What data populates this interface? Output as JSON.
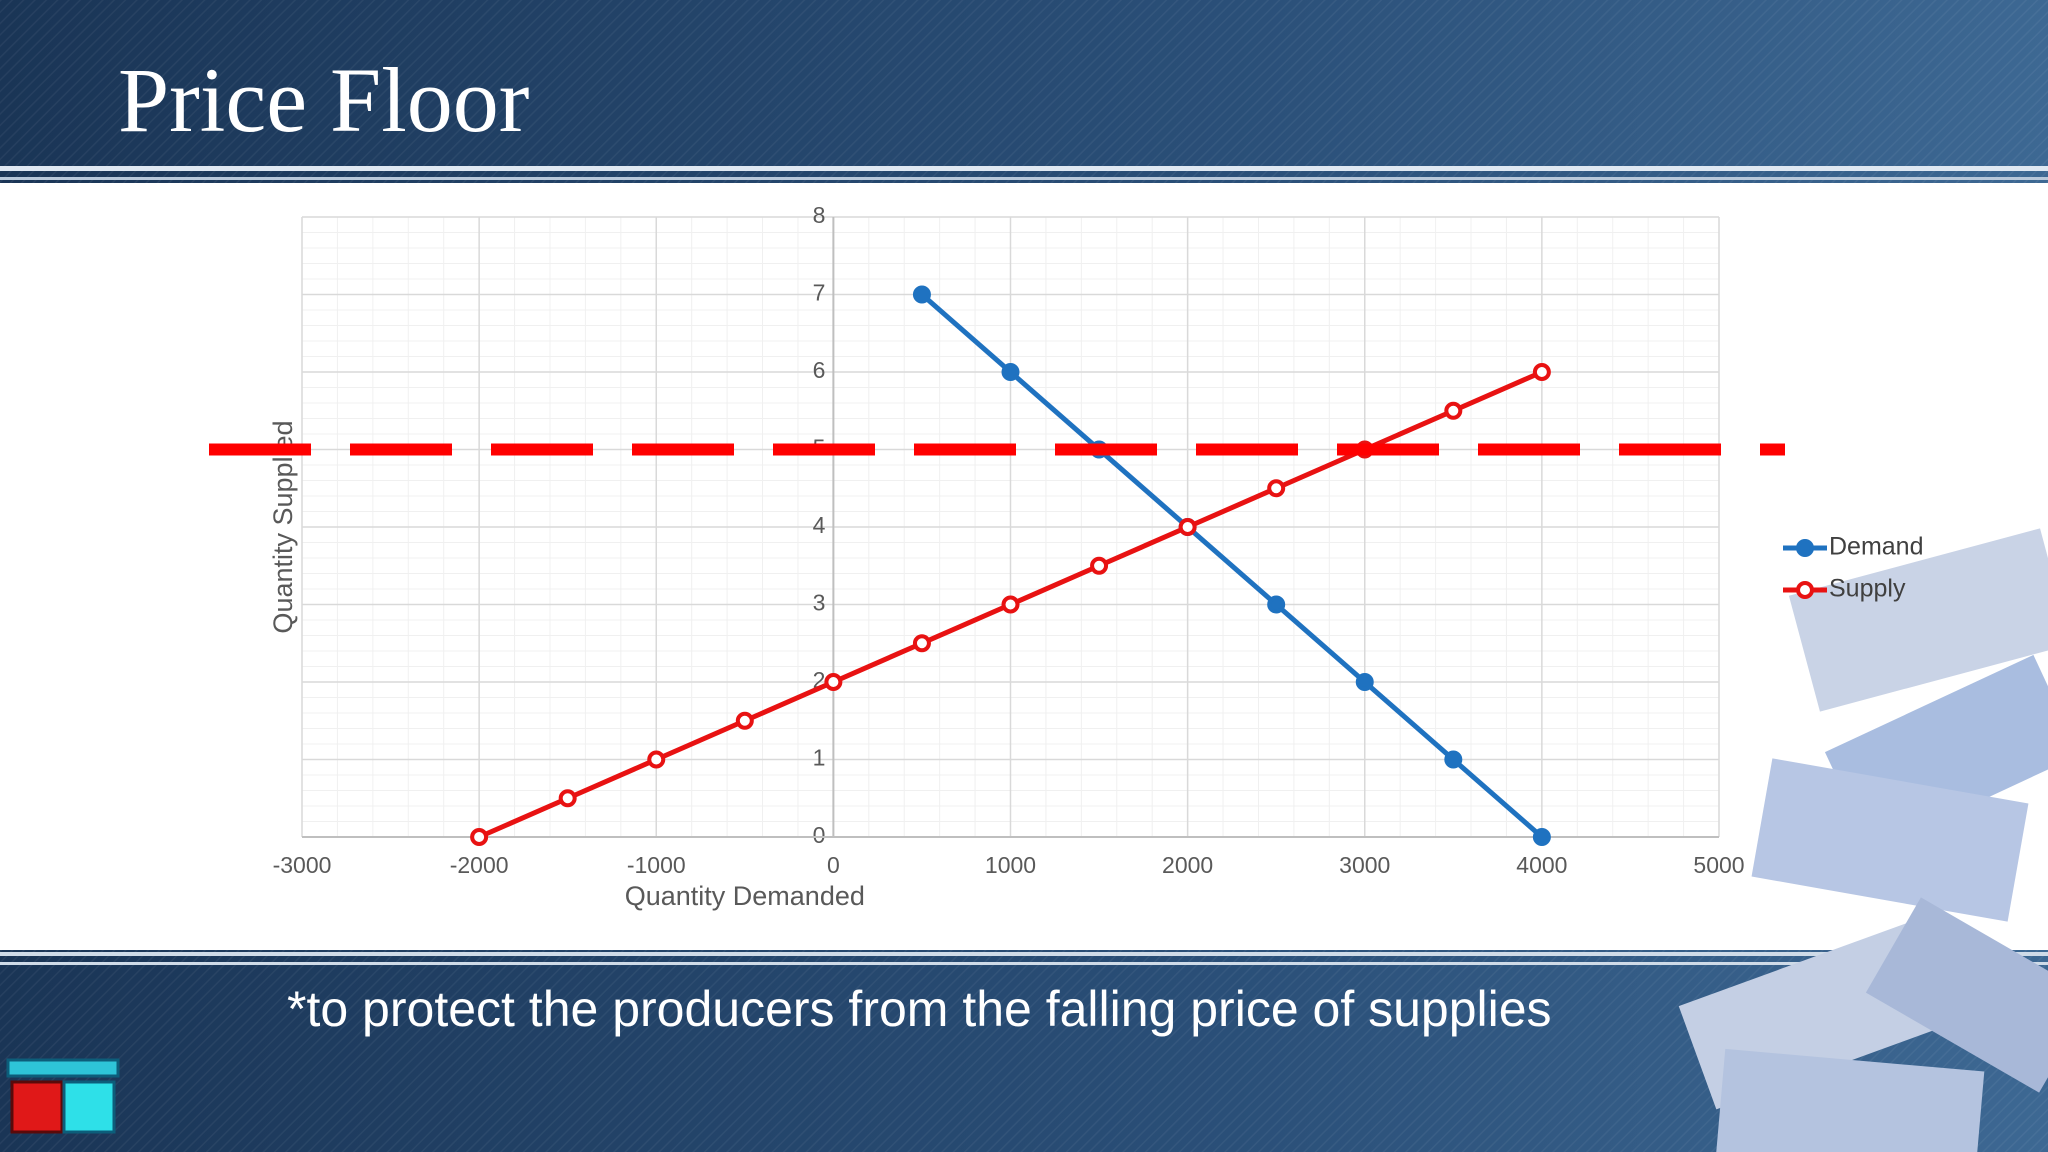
{
  "title": "Price Floor",
  "subtitle": "*to protect the producers from the falling price of supplies",
  "chart_data": {
    "type": "scatter",
    "xlabel": "Quantity Demanded",
    "ylabel": "Quantity Supplied",
    "xlim": [
      -3000,
      5000
    ],
    "ylim": [
      0,
      8
    ],
    "xticks": [
      -3000,
      -2000,
      -1000,
      0,
      1000,
      2000,
      3000,
      4000,
      5000
    ],
    "yticks": [
      0,
      1,
      2,
      3,
      4,
      5,
      6,
      7,
      8
    ],
    "grid": true,
    "legend": "right",
    "price_floor": 5,
    "price_floor_color": "#ff0000",
    "series": [
      {
        "name": "Demand",
        "color": "#1f72c0",
        "x": [
          500,
          1000,
          1500,
          2000,
          2500,
          3000,
          3500,
          4000
        ],
        "values": [
          7,
          6,
          5,
          4,
          3,
          2,
          1,
          0
        ]
      },
      {
        "name": "Supply",
        "color": "#e81212",
        "x": [
          -2000,
          -1500,
          -1000,
          -500,
          0,
          500,
          1000,
          1500,
          2000,
          2500,
          3000,
          3500,
          4000
        ],
        "values": [
          0,
          0.5,
          1,
          1.5,
          2,
          2.5,
          3,
          3.5,
          4,
          4.5,
          5,
          5.5,
          6
        ]
      }
    ]
  }
}
